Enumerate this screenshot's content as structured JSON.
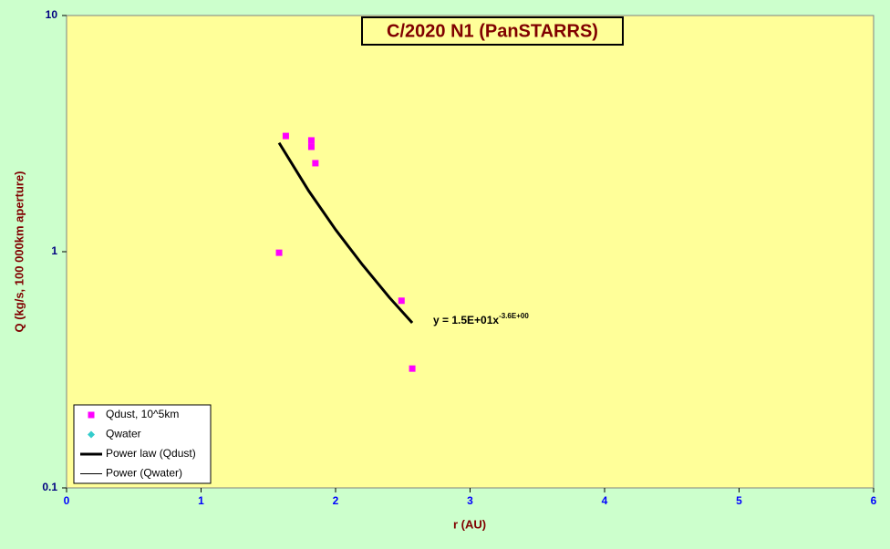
{
  "chart_data": {
    "type": "scatter",
    "title": "C/2020 N1 (PanSTARRS)",
    "x_label": "r (AU)",
    "y_label": "Q (kg/s, 100 000km aperture)",
    "xlim": [
      0,
      6
    ],
    "xticks": [
      0,
      1,
      2,
      3,
      4,
      5,
      6
    ],
    "ylim": [
      0.1,
      10
    ],
    "yticks": [
      0.1,
      1,
      10
    ],
    "log_y": true,
    "grid": false,
    "legend": "lower-left",
    "series": [
      {
        "name": "Qdust, 10^5km",
        "kind": "points",
        "marker": "square",
        "color": "#ff00ff",
        "x": [
          1.63,
          1.82,
          1.82,
          1.85,
          1.58,
          2.49,
          2.57
        ],
        "values": [
          3.09,
          2.96,
          2.78,
          2.37,
          0.99,
          0.62,
          0.32
        ]
      },
      {
        "name": "Qwater",
        "kind": "points",
        "marker": "diamond",
        "color": "#33cccc",
        "x": [],
        "values": []
      },
      {
        "name": "Power law (Qdust)",
        "kind": "line",
        "color": "#000000",
        "width": 3,
        "x": [
          1.58,
          1.8,
          2.0,
          2.2,
          2.4,
          2.57
        ],
        "values": [
          2.89,
          1.81,
          1.24,
          0.88,
          0.64,
          0.5
        ]
      },
      {
        "name": "Power (Qwater)",
        "kind": "line",
        "color": "#000000",
        "width": 1,
        "x": [],
        "values": []
      }
    ],
    "annotation": {
      "text": "y = 1.5E+01x",
      "superscript": "-3.6E+00"
    }
  }
}
